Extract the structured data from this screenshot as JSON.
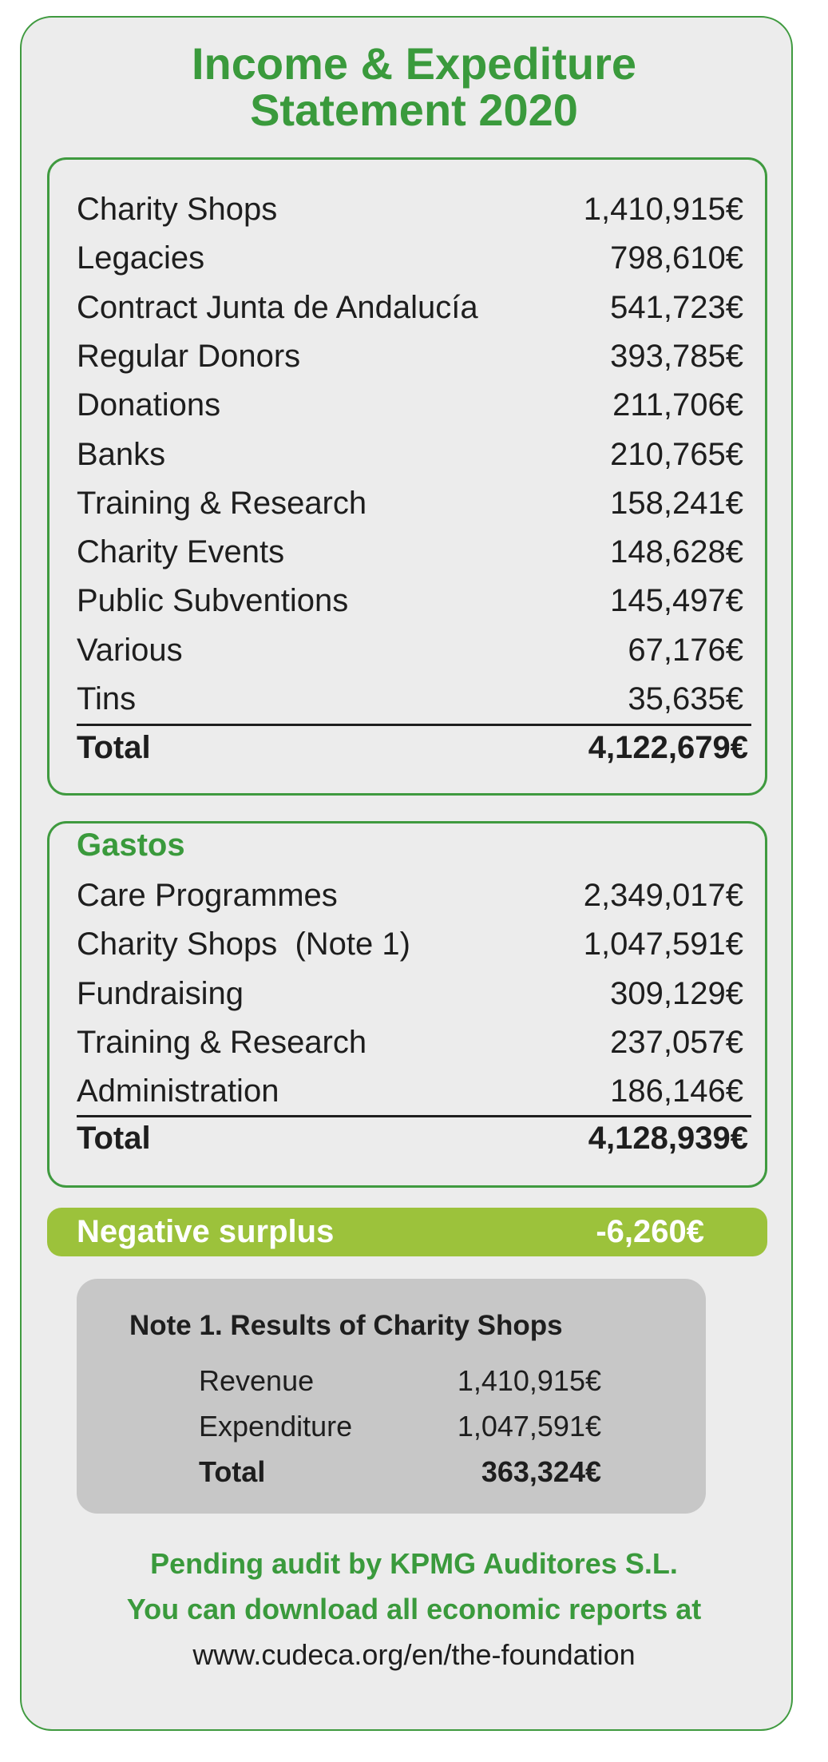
{
  "title": [
    "Income & Expediture",
    "Statement 2020"
  ],
  "income": {
    "rows": [
      {
        "label": "Charity Shops",
        "amount": "1,410,915€"
      },
      {
        "label": "Legacies",
        "amount": "798,610€"
      },
      {
        "label": "Contract Junta de Andalucía",
        "amount": "541,723€"
      },
      {
        "label": "Regular Donors",
        "amount": "393,785€"
      },
      {
        "label": "Donations",
        "amount": "211,706€"
      },
      {
        "label": "Banks",
        "amount": "210,765€"
      },
      {
        "label": "Training & Research",
        "amount": "158,241€"
      },
      {
        "label": "Charity Events",
        "amount": "148,628€"
      },
      {
        "label": "Public Subventions",
        "amount": "145,497€"
      },
      {
        "label": "Various",
        "amount": "67,176€"
      },
      {
        "label": "Tins",
        "amount": "35,635€"
      }
    ],
    "total": {
      "label": "Total",
      "amount": "4,122,679€"
    }
  },
  "expenditure": {
    "heading": "Gastos",
    "rows": [
      {
        "label": "Care Programmes",
        "amount": "2,349,017€"
      },
      {
        "label": "Charity Shops  (Note 1)",
        "amount": "1,047,591€"
      },
      {
        "label": "Fundraising",
        "amount": "309,129€"
      },
      {
        "label": "Training & Research",
        "amount": "237,057€"
      },
      {
        "label": "Administration",
        "amount": "186,146€"
      }
    ],
    "total": {
      "label": "Total",
      "amount": "4,128,939€"
    }
  },
  "surplus": {
    "label": "Negative surplus",
    "amount": "-6,260€"
  },
  "note": {
    "title": "Note 1. Results of Charity Shops",
    "rows": [
      {
        "label": "Revenue",
        "amount": "1,410,915€"
      },
      {
        "label": "Expenditure",
        "amount": "1,047,591€"
      }
    ],
    "total": {
      "label": "Total",
      "amount": "363,324€"
    }
  },
  "footer": [
    "Pending audit by KPMG Auditores S.L.",
    "You can download all economic reports at",
    "www.cudeca.org/en/the-foundation"
  ]
}
